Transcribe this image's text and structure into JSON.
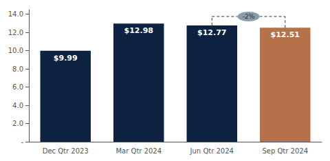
{
  "chart_data": {
    "type": "bar",
    "categories": [
      "Dec Qtr 2023",
      "Mar Qtr 2024",
      "Jun Qtr 2024",
      "Sep Qtr 2024"
    ],
    "values": [
      9.99,
      12.98,
      12.77,
      12.51
    ],
    "value_labels": [
      "$9.99",
      "$12.98",
      "$12.77",
      "$12.51"
    ],
    "data_labels": true,
    "colors": [
      "#0d2240",
      "#0d2240",
      "#0d2240",
      "#b5714a"
    ],
    "ylim": [
      0,
      14.5
    ],
    "yticks": [
      {
        "value": 0,
        "label": "-"
      },
      {
        "value": 2.0,
        "label": "2.0"
      },
      {
        "value": 4.0,
        "label": "4.0"
      },
      {
        "value": 6.0,
        "label": "6.0"
      },
      {
        "value": 8.0,
        "label": "8.0"
      },
      {
        "value": 10.0,
        "label": "10.0"
      },
      {
        "value": 12.0,
        "label": "12.0"
      },
      {
        "value": 14.0,
        "label": "14.0"
      }
    ],
    "grid": false,
    "annotations": [
      {
        "text": "-2%",
        "from": "Jun Qtr 2024",
        "to": "Sep Qtr 2024",
        "color": "#8a9baa"
      }
    ]
  }
}
